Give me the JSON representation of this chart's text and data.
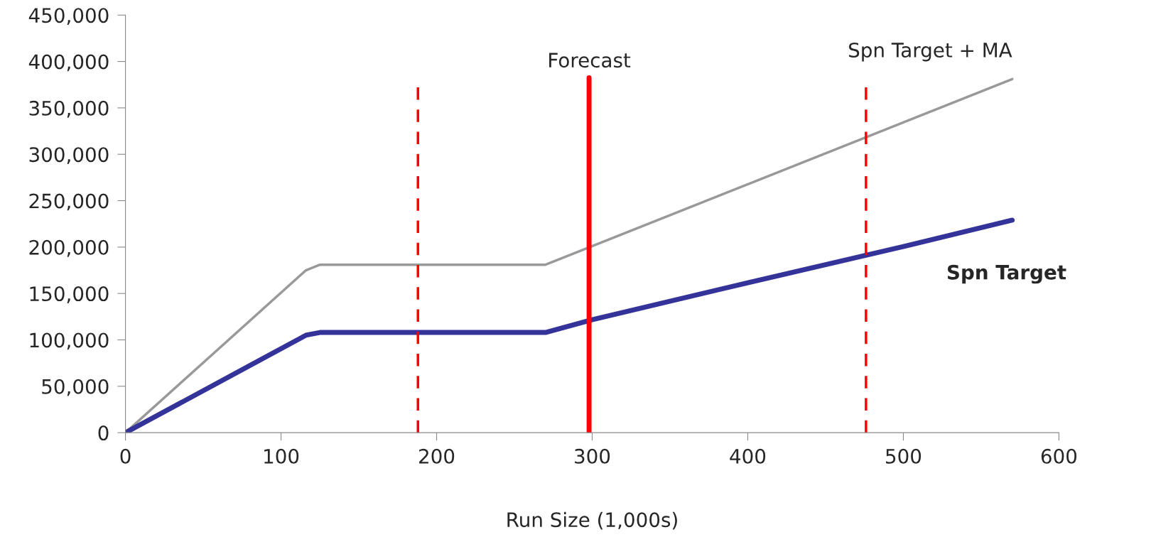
{
  "chart_data": {
    "type": "line",
    "xlabel": "Run Size (1,000s)",
    "xlim": [
      0,
      600
    ],
    "xticks": [
      0,
      100,
      200,
      300,
      400,
      500,
      600
    ],
    "ylim": [
      0,
      450000
    ],
    "yticks": [
      {
        "value": 0,
        "label": "0"
      },
      {
        "value": 50000,
        "label": "50,000"
      },
      {
        "value": 100000,
        "label": "100,000"
      },
      {
        "value": 150000,
        "label": "150,000"
      },
      {
        "value": 200000,
        "label": "200,000"
      },
      {
        "value": 250000,
        "label": "250,000"
      },
      {
        "value": 300000,
        "label": "300,000"
      },
      {
        "value": 350000,
        "label": "350,000"
      },
      {
        "value": 400000,
        "label": "400,000"
      },
      {
        "value": 450000,
        "label": "450,000"
      }
    ],
    "grid": false,
    "legend": false,
    "marker": "none",
    "line_style": "solid",
    "series": [
      {
        "name": "Spn Target + MA",
        "color": "#999999",
        "x": [
          0,
          116,
          125,
          270,
          570
        ],
        "values": [
          0,
          175000,
          181000,
          181000,
          381000
        ]
      },
      {
        "name": "Spn Target",
        "color": "#333399",
        "x": [
          0,
          116,
          125,
          270,
          300,
          400,
          500,
          570
        ],
        "values": [
          0,
          105000,
          108000,
          108000,
          121700,
          161600,
          200600,
          229000
        ]
      }
    ],
    "ref_lines": [
      {
        "axis": "x",
        "value": 188,
        "color": "#ff0000",
        "line_style": "dashed"
      },
      {
        "axis": "x",
        "value": 298,
        "label": "Forecast",
        "color": "#ff0000",
        "line_style": "solid"
      },
      {
        "axis": "x",
        "value": 476,
        "color": "#ff0000",
        "line_style": "dashed"
      }
    ]
  }
}
